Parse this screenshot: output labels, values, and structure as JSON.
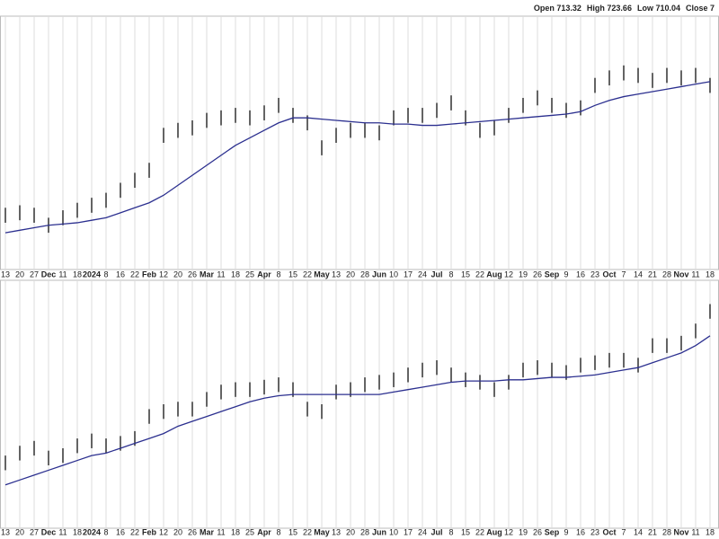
{
  "chart_data": [
    {
      "type": "ohlc",
      "legend_text": [
        "Open 713.32",
        "High 723.66",
        "Low 710.04",
        "Close 7"
      ],
      "categories": [
        "13",
        "20",
        "27",
        "Dec",
        "11",
        "18",
        "2024",
        "8",
        "16",
        "22",
        "Feb",
        "12",
        "20",
        "26",
        "Mar",
        "11",
        "18",
        "25",
        "Apr",
        "8",
        "15",
        "22",
        "May",
        "13",
        "20",
        "28",
        "Jun",
        "10",
        "17",
        "24",
        "Jul",
        "8",
        "15",
        "22",
        "Aug",
        "12",
        "19",
        "26",
        "Sep",
        "9",
        "16",
        "23",
        "Oct",
        "7",
        "14",
        "21",
        "28",
        "Nov",
        "11",
        "18"
      ],
      "high": [
        24,
        25,
        24,
        20,
        23,
        26,
        28,
        30,
        34,
        38,
        42,
        56,
        58,
        59,
        62,
        63,
        64,
        63,
        65,
        68,
        64,
        61,
        51,
        56,
        58,
        58,
        57,
        63,
        64,
        64,
        66,
        69,
        63,
        58,
        59,
        64,
        68,
        71,
        68,
        66,
        67,
        76,
        79,
        81,
        80,
        78,
        80,
        79,
        80,
        76
      ],
      "low": [
        18,
        19,
        18,
        14,
        17,
        20,
        22,
        24,
        28,
        32,
        36,
        50,
        52,
        53,
        56,
        57,
        58,
        57,
        59,
        62,
        58,
        55,
        45,
        50,
        52,
        52,
        51,
        57,
        58,
        58,
        60,
        63,
        57,
        52,
        53,
        58,
        62,
        65,
        62,
        60,
        61,
        70,
        73,
        75,
        74,
        72,
        74,
        73,
        74,
        70
      ],
      "ma": [
        14,
        15,
        16,
        17,
        17.5,
        18,
        19,
        20,
        22,
        24,
        26,
        29,
        33,
        37,
        41,
        45,
        49,
        52,
        55,
        58,
        60,
        60,
        59.5,
        59,
        58.5,
        58,
        58,
        57.5,
        57.5,
        57,
        57,
        57.5,
        58,
        58.5,
        59,
        59.5,
        60,
        60.5,
        61,
        61.5,
        62.5,
        65,
        67,
        68.5,
        69.5,
        70.5,
        71.5,
        72.5,
        73.5,
        74.5
      ],
      "color": "#111111",
      "ma_color": "#2b2f8f",
      "ylim": [
        0,
        100
      ],
      "grid": true
    },
    {
      "type": "ohlc",
      "categories": [
        "13",
        "20",
        "27",
        "Dec",
        "11",
        "18",
        "2024",
        "8",
        "16",
        "22",
        "Feb",
        "12",
        "20",
        "26",
        "Mar",
        "11",
        "18",
        "25",
        "Apr",
        "8",
        "15",
        "22",
        "May",
        "13",
        "20",
        "28",
        "Jun",
        "10",
        "17",
        "24",
        "Jul",
        "8",
        "15",
        "22",
        "Aug",
        "12",
        "19",
        "26",
        "Sep",
        "9",
        "16",
        "23",
        "Oct",
        "7",
        "14",
        "21",
        "28",
        "Nov",
        "11",
        "18"
      ],
      "high": [
        29,
        33,
        35,
        31,
        32,
        36,
        38,
        36,
        37,
        39,
        48,
        50,
        51,
        51,
        55,
        58,
        59,
        59,
        60,
        61,
        59,
        51,
        50,
        58,
        59,
        61,
        62,
        63,
        65,
        67,
        68,
        65,
        63,
        62,
        59,
        62,
        67,
        68,
        67,
        66,
        69,
        70,
        71,
        71,
        69,
        77,
        77,
        78,
        83,
        91
      ],
      "low": [
        23,
        27,
        29,
        25,
        26,
        30,
        32,
        30,
        31,
        33,
        42,
        44,
        45,
        45,
        49,
        52,
        53,
        53,
        54,
        55,
        53,
        45,
        44,
        52,
        53,
        55,
        56,
        57,
        59,
        61,
        62,
        59,
        57,
        56,
        53,
        56,
        61,
        62,
        61,
        60,
        63,
        64,
        65,
        65,
        63,
        71,
        71,
        72,
        77,
        85
      ],
      "ma": [
        17,
        19,
        21,
        23,
        25,
        27,
        29,
        30,
        32,
        34,
        36,
        38,
        41,
        43,
        45,
        47,
        49,
        51,
        52.5,
        53.5,
        54,
        54,
        54,
        54,
        54,
        54,
        54,
        55,
        56,
        57,
        58,
        59,
        59.5,
        59.5,
        59.5,
        60,
        60,
        60.5,
        61,
        61,
        61.5,
        62,
        63,
        64,
        65,
        67,
        69,
        71,
        74,
        78
      ],
      "color": "#111111",
      "ma_color": "#2b2f8f",
      "ylim": [
        0,
        100
      ],
      "grid": true
    }
  ]
}
